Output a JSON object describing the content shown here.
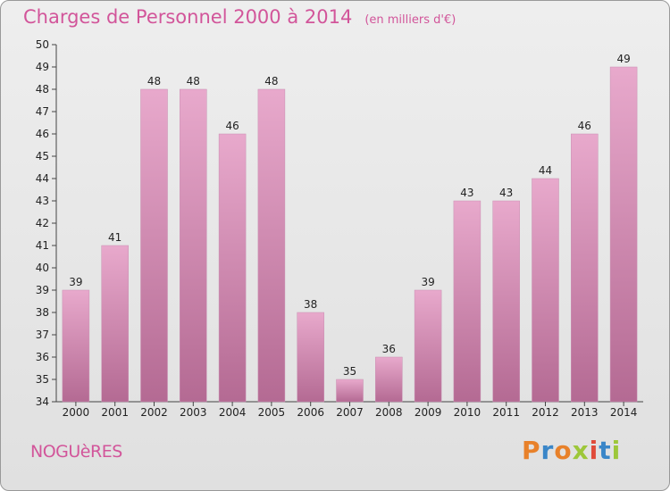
{
  "title": "Charges de Personnel 2000 à 2014",
  "title_unit": "(en milliers d'€)",
  "town": "NOGUèRES",
  "logo": {
    "text": "Proxiti",
    "colors": [
      "#e8812a",
      "#3a86c8",
      "#e8812a",
      "#9dc73a",
      "#e04b3a",
      "#3a86c8",
      "#9dc73a"
    ]
  },
  "colors": {
    "accent": "#d2559a",
    "bar_light": "#e8a9cc",
    "bar_dark": "#b46a93"
  },
  "chart_data": {
    "type": "bar",
    "categories": [
      "2000",
      "2001",
      "2002",
      "2003",
      "2004",
      "2005",
      "2006",
      "2007",
      "2008",
      "2009",
      "2010",
      "2011",
      "2012",
      "2013",
      "2014"
    ],
    "values": [
      39,
      41,
      48,
      48,
      46,
      48,
      38,
      35,
      36,
      39,
      43,
      43,
      44,
      46,
      49
    ],
    "data_labels": [
      "39",
      "41",
      "48",
      "48",
      "46",
      "48",
      "38",
      "35",
      "36",
      "39",
      "43",
      "43",
      "44",
      "46",
      "49"
    ],
    "ylim": [
      34,
      50
    ],
    "yticks": [
      "34",
      "35",
      "36",
      "37",
      "38",
      "39",
      "40",
      "41",
      "42",
      "43",
      "44",
      "45",
      "46",
      "47",
      "48",
      "49",
      "50"
    ],
    "grid": false,
    "xlabel": "",
    "ylabel": ""
  }
}
